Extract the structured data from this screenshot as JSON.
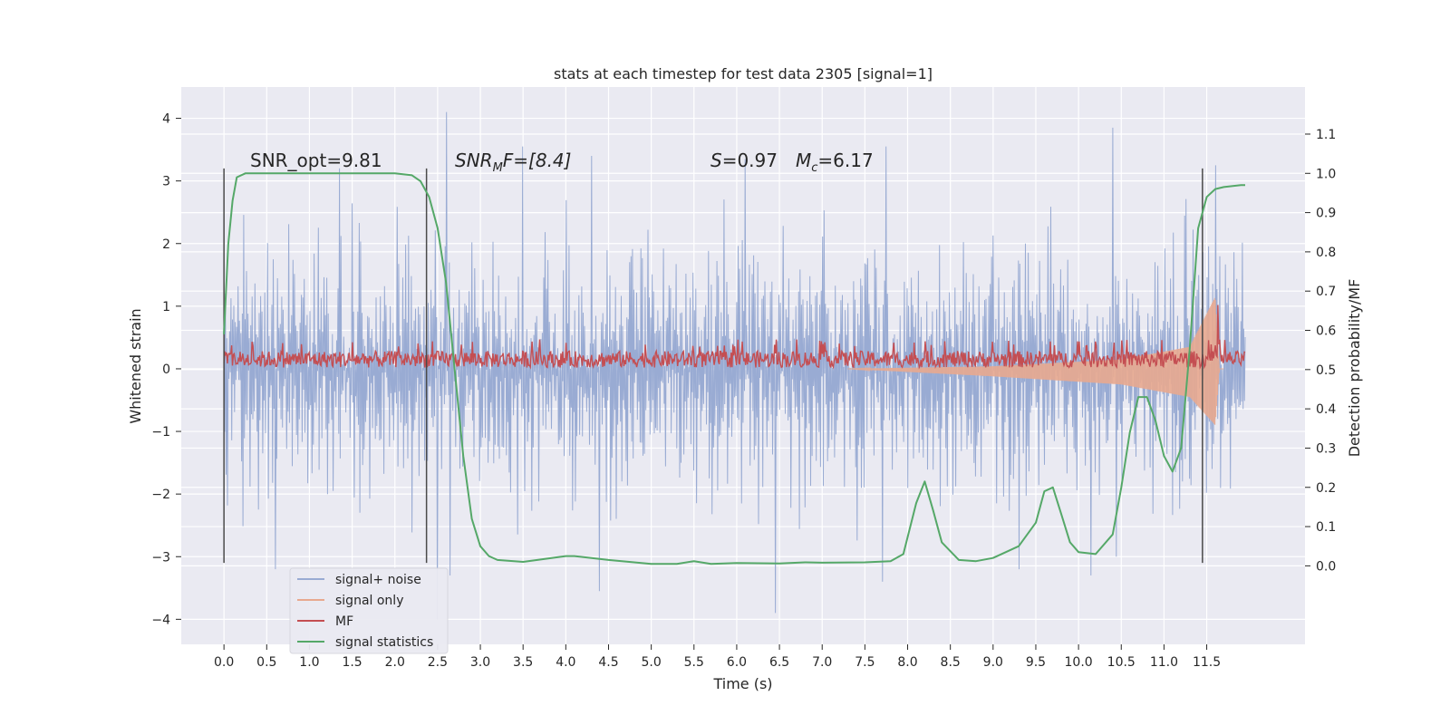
{
  "chart_data": {
    "type": "line",
    "title": "stats at each timestep for test data 2305 [signal=1]",
    "xlabel": "Time (s)",
    "ylabel": "Whitened strain",
    "y2label": "Detection probability/MF",
    "xlim": [
      -0.5,
      12.65
    ],
    "ylim": [
      -4.4,
      4.5
    ],
    "y2lim": [
      -0.2,
      1.22
    ],
    "x_ticks": [
      "0.0",
      "0.5",
      "1.0",
      "1.5",
      "2.0",
      "2.5",
      "3.0",
      "3.5",
      "4.0",
      "4.5",
      "5.0",
      "5.5",
      "6.0",
      "6.5",
      "7.0",
      "7.5",
      "8.0",
      "8.5",
      "9.0",
      "9.5",
      "10.0",
      "10.5",
      "11.0",
      "11.5"
    ],
    "y_ticks": [
      "4",
      "3",
      "2",
      "1",
      "0",
      "−1",
      "−2",
      "−3",
      "−4"
    ],
    "y2_ticks": [
      "1.1",
      "1.0",
      "0.9",
      "0.8",
      "0.7",
      "0.6",
      "0.5",
      "0.4",
      "0.3",
      "0.2",
      "0.1",
      "0.0"
    ],
    "grid": true,
    "legend_position": "lower-left",
    "annotations": {
      "snr_opt": "SNR_opt=9.81",
      "snr_mf_name": "SNR",
      "snr_mf_sub": "M",
      "snr_mf_rest": "F=[8.4]",
      "s_name": "S",
      "s_value": "=0.97",
      "mc_name": "M",
      "mc_sub": "c",
      "mc_value": "=6.17"
    },
    "vlines_x": [
      0.0,
      2.37,
      11.45
    ],
    "series": [
      {
        "name": "signal+ noise",
        "color": "#99abd3",
        "x_range": [
          0.0,
          11.95
        ],
        "envelope_upper_typical": 2.0,
        "envelope_lower_typical": -2.0,
        "spike_peaks": [
          {
            "x": 2.6,
            "y": 4.1
          },
          {
            "x": 3.5,
            "y": 3.55
          },
          {
            "x": 10.4,
            "y": 3.85
          },
          {
            "x": 7.75,
            "y": 3.55
          },
          {
            "x": 6.1,
            "y": 3.35
          },
          {
            "x": 1.35,
            "y": 3.2
          },
          {
            "x": 4.3,
            "y": 3.4
          },
          {
            "x": 11.6,
            "y": 3.25
          },
          {
            "x": 2.5,
            "y": -4.0
          },
          {
            "x": 6.45,
            "y": -3.9
          },
          {
            "x": 4.4,
            "y": -3.55
          },
          {
            "x": 10.15,
            "y": -3.3
          },
          {
            "x": 7.7,
            "y": -3.4
          },
          {
            "x": 0.6,
            "y": -3.2
          },
          {
            "x": 2.65,
            "y": -3.3
          },
          {
            "x": 9.3,
            "y": -3.2
          }
        ]
      },
      {
        "name": "signal only",
        "color": "#e8a98f",
        "x_range": [
          7.3,
          11.7
        ],
        "description_points": [
          {
            "x": 7.3,
            "upper": 0.0,
            "lower": 0.0
          },
          {
            "x": 9.0,
            "upper": 0.04,
            "lower": -0.12
          },
          {
            "x": 10.5,
            "upper": 0.15,
            "lower": -0.25
          },
          {
            "x": 11.3,
            "upper": 0.35,
            "lower": -0.45
          },
          {
            "x": 11.6,
            "upper": 1.15,
            "lower": -0.9
          },
          {
            "x": 11.65,
            "upper": 0.0,
            "lower": 0.0
          }
        ]
      },
      {
        "name": "MF",
        "color": "#c44e52",
        "axis": "left",
        "typical_range": [
          0.02,
          0.35
        ],
        "peak": {
          "x": 11.63,
          "y": 1.02
        }
      },
      {
        "name": "signal statistics",
        "color": "#55a868",
        "axis": "right",
        "x": [
          0.0,
          0.05,
          0.1,
          0.15,
          0.25,
          0.5,
          1.0,
          1.5,
          2.0,
          2.2,
          2.3,
          2.4,
          2.5,
          2.6,
          2.7,
          2.8,
          2.9,
          3.0,
          3.1,
          3.2,
          3.5,
          4.0,
          4.1,
          4.5,
          5.0,
          5.3,
          5.5,
          5.7,
          6.0,
          6.5,
          6.8,
          7.0,
          7.5,
          7.8,
          7.95,
          8.1,
          8.2,
          8.3,
          8.4,
          8.6,
          8.8,
          9.0,
          9.3,
          9.5,
          9.6,
          9.7,
          9.8,
          9.9,
          10.0,
          10.2,
          10.4,
          10.5,
          10.6,
          10.7,
          10.8,
          10.9,
          11.0,
          11.1,
          11.2,
          11.3,
          11.4,
          11.5,
          11.6,
          11.7,
          11.9,
          11.95
        ],
        "values": [
          0.59,
          0.82,
          0.93,
          0.99,
          1.0,
          1.0,
          1.0,
          1.0,
          1.0,
          0.995,
          0.98,
          0.94,
          0.86,
          0.72,
          0.5,
          0.28,
          0.12,
          0.05,
          0.025,
          0.015,
          0.01,
          0.025,
          0.025,
          0.015,
          0.005,
          0.005,
          0.012,
          0.005,
          0.007,
          0.006,
          0.009,
          0.008,
          0.009,
          0.012,
          0.03,
          0.16,
          0.215,
          0.14,
          0.06,
          0.015,
          0.012,
          0.02,
          0.05,
          0.11,
          0.19,
          0.2,
          0.13,
          0.06,
          0.035,
          0.03,
          0.08,
          0.2,
          0.34,
          0.43,
          0.43,
          0.37,
          0.28,
          0.24,
          0.3,
          0.55,
          0.86,
          0.94,
          0.96,
          0.965,
          0.97,
          0.97
        ]
      }
    ]
  }
}
